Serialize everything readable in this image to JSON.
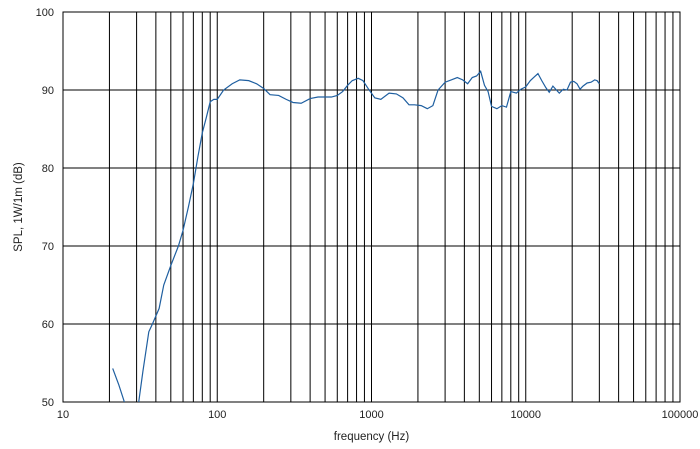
{
  "chart_data": {
    "type": "line",
    "title": "",
    "xlabel": "frequency (Hz)",
    "ylabel": "SPL, 1W/1m (dB)",
    "x_scale": "log",
    "xlim": [
      10,
      100000
    ],
    "ylim": [
      50,
      100
    ],
    "x_ticks": [
      10,
      100,
      1000,
      10000,
      100000
    ],
    "x_tick_labels": [
      "10",
      "100",
      "1000",
      "10000",
      "100000"
    ],
    "y_ticks": [
      50,
      60,
      70,
      80,
      90,
      100
    ],
    "y_tick_labels": [
      "50",
      "60",
      "70",
      "80",
      "90",
      "100"
    ],
    "grid": true,
    "line_color": "#1f5fa0",
    "grid_color": "#000000",
    "series": [
      {
        "points": [
          [
            21,
            54.3
          ],
          [
            23,
            52.2
          ],
          [
            25,
            50.0
          ],
          [
            30,
            48.0
          ],
          [
            33,
            54.0
          ],
          [
            36,
            59.0
          ],
          [
            38,
            60.0
          ],
          [
            42,
            62.0
          ],
          [
            45,
            65.0
          ],
          [
            50,
            67.5
          ],
          [
            56,
            70.0
          ],
          [
            60,
            72.0
          ],
          [
            65,
            75.0
          ],
          [
            70,
            78.0
          ],
          [
            75,
            81.5
          ],
          [
            80,
            84.5
          ],
          [
            85,
            86.5
          ],
          [
            90,
            88.5
          ],
          [
            95,
            88.8
          ],
          [
            100,
            88.8
          ],
          [
            110,
            90.0
          ],
          [
            125,
            90.8
          ],
          [
            140,
            91.3
          ],
          [
            160,
            91.2
          ],
          [
            180,
            90.8
          ],
          [
            200,
            90.2
          ],
          [
            220,
            89.4
          ],
          [
            250,
            89.3
          ],
          [
            280,
            88.8
          ],
          [
            310,
            88.4
          ],
          [
            350,
            88.3
          ],
          [
            400,
            88.9
          ],
          [
            450,
            89.1
          ],
          [
            500,
            89.1
          ],
          [
            550,
            89.1
          ],
          [
            600,
            89.3
          ],
          [
            650,
            89.8
          ],
          [
            700,
            90.6
          ],
          [
            750,
            91.2
          ],
          [
            820,
            91.5
          ],
          [
            880,
            91.2
          ],
          [
            950,
            90.2
          ],
          [
            1050,
            89.0
          ],
          [
            1150,
            88.8
          ],
          [
            1300,
            89.6
          ],
          [
            1450,
            89.5
          ],
          [
            1600,
            89.0
          ],
          [
            1750,
            88.1
          ],
          [
            1900,
            88.1
          ],
          [
            2100,
            88.0
          ],
          [
            2300,
            87.6
          ],
          [
            2500,
            88.0
          ],
          [
            2700,
            90.0
          ],
          [
            3000,
            91.0
          ],
          [
            3300,
            91.3
          ],
          [
            3600,
            91.6
          ],
          [
            3900,
            91.3
          ],
          [
            4200,
            90.8
          ],
          [
            4500,
            91.6
          ],
          [
            4800,
            91.8
          ],
          [
            5100,
            92.4
          ],
          [
            5400,
            90.6
          ],
          [
            5700,
            89.8
          ],
          [
            6000,
            87.9
          ],
          [
            6500,
            87.6
          ],
          [
            7000,
            88.0
          ],
          [
            7500,
            87.8
          ],
          [
            8000,
            89.8
          ],
          [
            8700,
            89.6
          ],
          [
            9300,
            90.1
          ],
          [
            10000,
            90.4
          ],
          [
            10700,
            91.2
          ],
          [
            11400,
            91.7
          ],
          [
            12000,
            92.1
          ],
          [
            12700,
            91.2
          ],
          [
            13500,
            90.3
          ],
          [
            14200,
            89.7
          ],
          [
            15000,
            90.5
          ],
          [
            15800,
            90.0
          ],
          [
            16500,
            89.6
          ],
          [
            17500,
            90.1
          ],
          [
            18500,
            90.0
          ],
          [
            19500,
            91.0
          ],
          [
            20500,
            91.1
          ],
          [
            21500,
            90.8
          ],
          [
            22500,
            90.1
          ],
          [
            23500,
            90.5
          ],
          [
            25000,
            90.9
          ],
          [
            26500,
            91.0
          ],
          [
            28000,
            91.3
          ],
          [
            29000,
            91.2
          ],
          [
            30000,
            90.8
          ]
        ]
      }
    ]
  }
}
